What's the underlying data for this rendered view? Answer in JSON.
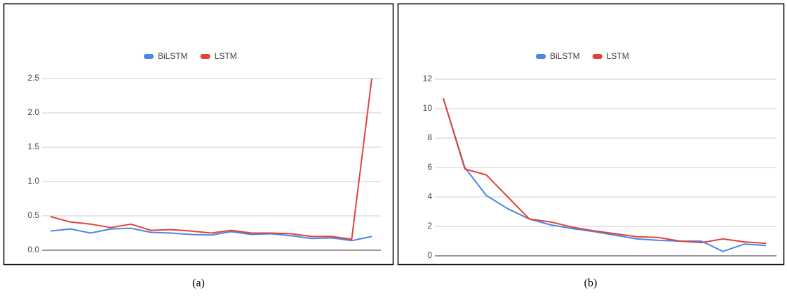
{
  "chart_data": [
    {
      "type": "line",
      "caption": "(a)",
      "categories": [
        null,
        null,
        null,
        null,
        null,
        null,
        null,
        null,
        null,
        null,
        null,
        null,
        null,
        null,
        null,
        null,
        null
      ],
      "series": [
        {
          "name": "BiLSTM",
          "color": "#4a86e8",
          "values": [
            0.28,
            0.31,
            0.25,
            0.31,
            0.32,
            0.26,
            0.25,
            0.23,
            0.22,
            0.27,
            0.23,
            0.24,
            0.21,
            0.17,
            0.18,
            0.14,
            0.2
          ]
        },
        {
          "name": "LSTM",
          "color": "#e0433a",
          "values": [
            0.49,
            0.41,
            0.38,
            0.33,
            0.38,
            0.29,
            0.3,
            0.28,
            0.25,
            0.29,
            0.25,
            0.25,
            0.24,
            0.2,
            0.2,
            0.16,
            2.5
          ]
        }
      ],
      "ylim": [
        0,
        2.5
      ],
      "yticks": [
        {
          "value": 0,
          "label": "0.0"
        },
        0.5,
        {
          "value": 1,
          "label": "1.0"
        },
        1.5,
        {
          "value": 2,
          "label": "2.0"
        },
        2.5
      ],
      "grid": true,
      "legend": "top"
    },
    {
      "type": "line",
      "caption": "(b)",
      "categories": [
        null,
        null,
        null,
        null,
        null,
        null,
        null,
        null,
        null,
        null,
        null,
        null,
        null,
        null,
        null,
        null
      ],
      "series": [
        {
          "name": "BiLSTM",
          "color": "#4a86e8",
          "values": [
            10.7,
            6.0,
            4.1,
            3.2,
            2.5,
            2.1,
            1.85,
            1.65,
            1.4,
            1.15,
            1.05,
            1.0,
            1.0,
            0.3,
            0.8,
            0.7
          ]
        },
        {
          "name": "LSTM",
          "color": "#e0433a",
          "values": [
            10.7,
            5.9,
            5.5,
            4.0,
            2.5,
            2.3,
            1.95,
            1.7,
            1.5,
            1.3,
            1.25,
            1.0,
            0.9,
            1.15,
            0.95,
            0.85
          ]
        }
      ],
      "ylim": [
        0,
        12
      ],
      "yticks": [
        0,
        2,
        4,
        6,
        8,
        10,
        12
      ],
      "grid": true,
      "legend": "top"
    }
  ]
}
